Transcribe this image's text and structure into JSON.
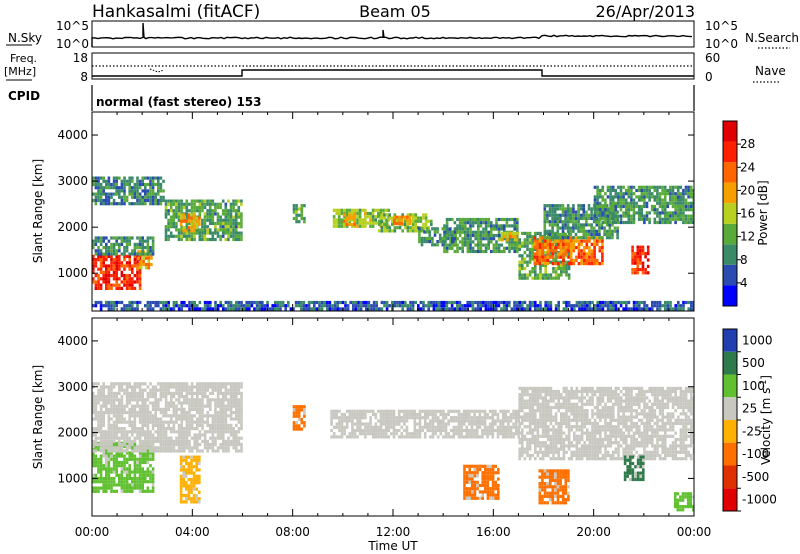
{
  "header": {
    "station": "Hankasalmi (fitACF)",
    "beam": "Beam 05",
    "date": "26/Apr/2013"
  },
  "param_panel": {
    "nsky_label": "N.Sky",
    "nsky_ticks": [
      "10^5",
      "10^0"
    ],
    "nsearch_label": "N.Search",
    "nsearch_ticks": [
      "10^5",
      "10^0"
    ],
    "freq_label": "Freq.",
    "freq_unit": "[MHz]",
    "freq_ticks": [
      "18",
      "8"
    ],
    "nave_label": "Nave",
    "nave_ticks": [
      "60",
      "0"
    ],
    "cpid_label": "CPID",
    "cpid_text": "normal (fast stereo) 153"
  },
  "x_axis": {
    "label": "Time UT",
    "ticks": [
      "00:00",
      "04:00",
      "08:00",
      "12:00",
      "16:00",
      "20:00",
      "00:00"
    ]
  },
  "colors": {
    "power_scale": [
      "#0000ff",
      "#2a4bb0",
      "#3a8a6a",
      "#5aaa3a",
      "#b8d020",
      "#f5a000",
      "#ff6600",
      "#ff2000",
      "#e00000"
    ],
    "velocity_scale": [
      "#2040b0",
      "#2f7a4a",
      "#60c030",
      "#c8c8c0",
      "#ffb000",
      "#ff7000",
      "#e03000",
      "#e00000"
    ]
  },
  "chart_data": [
    {
      "type": "heatmap",
      "title": "Power",
      "ylabel": "Slant Range [km]",
      "xlabel": "",
      "x_range_hours": [
        0,
        24
      ],
      "ylim": [
        180,
        4500
      ],
      "yticks": [
        "4000",
        "3000",
        "2000",
        "1000"
      ],
      "colorbar": {
        "label": "Power [dB]",
        "ticks": [
          "28",
          "24",
          "20",
          "16",
          "12",
          "8",
          "4"
        ],
        "range": [
          0,
          32
        ]
      },
      "regions": [
        {
          "t0": 0.0,
          "t1": 1.9,
          "r0": 700,
          "r1": 1400,
          "value": 27
        },
        {
          "t0": 1.8,
          "t1": 2.4,
          "r0": 1100,
          "r1": 1500,
          "value": 21
        },
        {
          "t0": 0.0,
          "t1": 2.4,
          "r0": 1400,
          "r1": 1800,
          "value": 9
        },
        {
          "t0": 0.0,
          "t1": 2.9,
          "r0": 2500,
          "r1": 3100,
          "value": 9
        },
        {
          "t0": 2.9,
          "t1": 6.0,
          "r0": 1750,
          "r1": 2600,
          "value": 11
        },
        {
          "t0": 3.5,
          "t1": 4.3,
          "r0": 1900,
          "r1": 2300,
          "value": 20
        },
        {
          "t0": 8.0,
          "t1": 8.5,
          "r0": 2100,
          "r1": 2500,
          "value": 12
        },
        {
          "t0": 9.6,
          "t1": 11.8,
          "r0": 2000,
          "r1": 2400,
          "value": 14
        },
        {
          "t0": 10.0,
          "t1": 10.5,
          "r0": 2050,
          "r1": 2300,
          "value": 20
        },
        {
          "t0": 11.4,
          "t1": 13.5,
          "r0": 1950,
          "r1": 2300,
          "value": 13
        },
        {
          "t0": 12.0,
          "t1": 12.7,
          "r0": 2050,
          "r1": 2250,
          "value": 20
        },
        {
          "t0": 13.0,
          "t1": 14.5,
          "r0": 1600,
          "r1": 2000,
          "value": 10
        },
        {
          "t0": 14.0,
          "t1": 17.0,
          "r0": 1500,
          "r1": 2200,
          "value": 10
        },
        {
          "t0": 16.2,
          "t1": 17.0,
          "r0": 1700,
          "r1": 1900,
          "value": 18
        },
        {
          "t0": 17.0,
          "t1": 19.0,
          "r0": 900,
          "r1": 1900,
          "value": 12
        },
        {
          "t0": 17.6,
          "t1": 20.3,
          "r0": 1200,
          "r1": 1800,
          "value": 23
        },
        {
          "t0": 18.0,
          "t1": 21.0,
          "r0": 1800,
          "r1": 2500,
          "value": 10
        },
        {
          "t0": 20.0,
          "t1": 24.0,
          "r0": 2100,
          "r1": 2900,
          "value": 10
        },
        {
          "t0": 21.5,
          "t1": 22.2,
          "r0": 1000,
          "r1": 1600,
          "value": 27
        },
        {
          "t0": 0.0,
          "t1": 24.0,
          "r0": 200,
          "r1": 400,
          "value": 6
        }
      ]
    },
    {
      "type": "heatmap",
      "title": "Velocity",
      "ylabel": "Slant Range [km]",
      "xlabel": "Time UT",
      "x_range_hours": [
        0,
        24
      ],
      "ylim": [
        180,
        4500
      ],
      "yticks": [
        "4000",
        "3000",
        "2000",
        "1000"
      ],
      "colorbar": {
        "label": "Velocity [m s^-1]",
        "ticks": [
          "1000",
          "500",
          "100",
          "25",
          "-25",
          "-100",
          "-500",
          "-1000"
        ]
      },
      "regions": [
        {
          "t0": 0.0,
          "t1": 2.4,
          "r0": 700,
          "r1": 1800,
          "value": "60"
        },
        {
          "t0": 0.0,
          "t1": 6.0,
          "r0": 1600,
          "r1": 3100,
          "value": "0"
        },
        {
          "t0": 3.5,
          "t1": 4.3,
          "r0": 500,
          "r1": 1500,
          "value": "-60"
        },
        {
          "t0": 8.0,
          "t1": 8.5,
          "r0": 2100,
          "r1": 2600,
          "value": "-300"
        },
        {
          "t0": 9.5,
          "t1": 17.0,
          "r0": 1900,
          "r1": 2500,
          "value": "0"
        },
        {
          "t0": 17.0,
          "t1": 24.0,
          "r0": 1400,
          "r1": 3000,
          "value": "0"
        },
        {
          "t0": 14.8,
          "t1": 16.2,
          "r0": 600,
          "r1": 1300,
          "value": "-300"
        },
        {
          "t0": 17.8,
          "t1": 19.0,
          "r0": 500,
          "r1": 1200,
          "value": "-300"
        },
        {
          "t0": 21.2,
          "t1": 22.0,
          "r0": 1000,
          "r1": 1500,
          "value": "300"
        },
        {
          "t0": 23.2,
          "t1": 24.0,
          "r0": 300,
          "r1": 700,
          "value": "60"
        }
      ]
    }
  ]
}
